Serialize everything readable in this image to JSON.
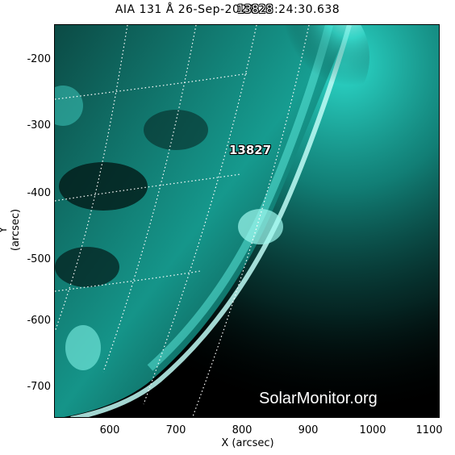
{
  "title": "AIA 131 Å 26-Sep-2024 23:24:30.638",
  "title_overlay": "13828",
  "axes": {
    "x_title": "X (arcsec)",
    "y_title": "Y (arcsec)",
    "x_ticks": [
      "600",
      "700",
      "800",
      "900",
      "1000",
      "1100"
    ],
    "y_ticks": [
      "-200",
      "-300",
      "-400",
      "-500",
      "-600",
      "-700"
    ]
  },
  "active_region_label": "13827",
  "watermark": "SolarMonitor.org",
  "colors": {
    "background": "#ffffff",
    "image_dark": "#000000",
    "image_cyan": "#2fe6d6",
    "grid": "#ffffff"
  }
}
